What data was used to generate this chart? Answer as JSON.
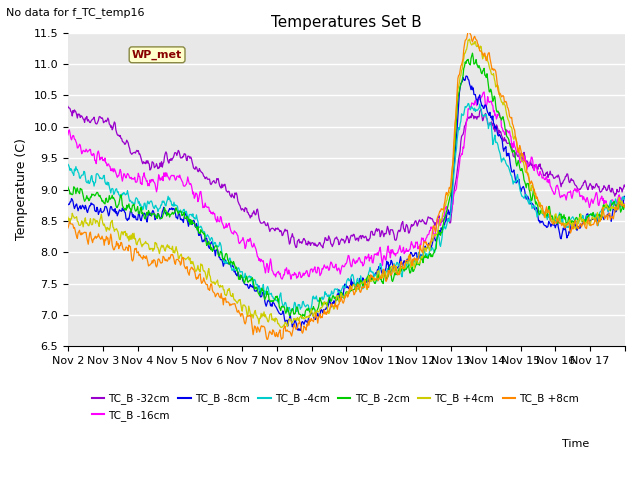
{
  "title": "Temperatures Set B",
  "subtitle": "No data for f_TC_temp16",
  "xlabel": "Time",
  "ylabel": "Temperature (C)",
  "ylim": [
    6.5,
    11.5
  ],
  "series_labels": [
    "TC_B -32cm",
    "TC_B -16cm",
    "TC_B -8cm",
    "TC_B -4cm",
    "TC_B -2cm",
    "TC_B +4cm",
    "TC_B +8cm"
  ],
  "series_colors": [
    "#9900cc",
    "#ff00ff",
    "#0000ee",
    "#00cccc",
    "#00cc00",
    "#cccc00",
    "#ff8800"
  ],
  "annotation_label": "WP_met",
  "annotation_color": "#880000",
  "annotation_bg": "#ffffcc",
  "bg_color": "#e8e8e8",
  "grid_color": "#ffffff",
  "x_tick_labels": [
    "Nov 2",
    "Nov 3",
    "Nov 4",
    "Nov 5",
    "Nov 6",
    "Nov 7",
    "Nov 8",
    "Nov 9",
    "Nov 10",
    "Nov 11",
    "Nov 12",
    "Nov 13",
    "Nov 14",
    "Nov 15",
    "Nov 16",
    "Nov 17"
  ],
  "n_days": 16,
  "pts_per_day": 48
}
